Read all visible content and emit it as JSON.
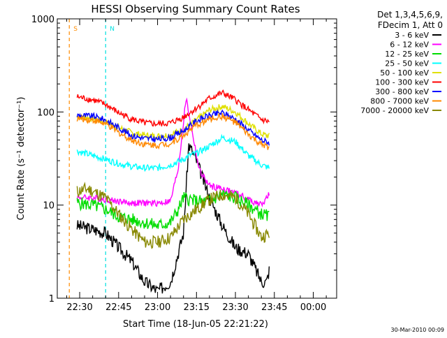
{
  "chart_data": {
    "type": "line",
    "title": "HESSI Observing Summary Count Rates",
    "xlabel": "Start Time (18-Jun-05 22:21:22)",
    "ylabel": "Count Rate (s⁻¹ detector⁻¹)",
    "y_scale": "log",
    "ylim": [
      1,
      1000
    ],
    "xlim": [
      "22:21:22",
      "00:09"
    ],
    "x_ticks": [
      "22:30",
      "22:45",
      "23:00",
      "23:15",
      "23:30",
      "23:45",
      "00:00"
    ],
    "y_ticks": [
      "1",
      "10",
      "100",
      "1000"
    ],
    "legend_title": [
      "Det 1,3,4,5,6,9,",
      "FDecim 1, Att 0"
    ],
    "legend_position": "right",
    "footer": "30-Mar-2010 00:09",
    "markers": [
      {
        "label": "S",
        "time": "22:26",
        "color": "#ff8c00"
      },
      {
        "label": "N",
        "time": "22:40",
        "color": "#00e0e0"
      }
    ],
    "series": [
      {
        "name": "3 - 6 keV",
        "color": "#000000",
        "x": [
          "22:29",
          "22:35",
          "22:40",
          "22:45",
          "22:50",
          "22:55",
          "23:00",
          "23:05",
          "23:10",
          "23:12",
          "23:15",
          "23:20",
          "23:25",
          "23:30",
          "23:35",
          "23:40",
          "23:42",
          "23:43"
        ],
        "y": [
          6,
          5.5,
          5,
          3.5,
          2.5,
          1.5,
          1.2,
          1.5,
          5,
          45,
          30,
          12,
          6,
          3.5,
          3,
          1.5,
          1.5,
          2
        ]
      },
      {
        "name": "6 - 12 keV",
        "color": "#ff00ff",
        "x": [
          "22:29",
          "22:35",
          "22:40",
          "22:45",
          "22:50",
          "22:55",
          "23:00",
          "23:05",
          "23:08",
          "23:11",
          "23:13",
          "23:16",
          "23:20",
          "23:25",
          "23:30",
          "23:35",
          "23:40",
          "23:43"
        ],
        "y": [
          12,
          12,
          11.5,
          11,
          10.5,
          10.5,
          10.5,
          11,
          25,
          140,
          70,
          24,
          16,
          15,
          13.5,
          11.5,
          10,
          13
        ]
      },
      {
        "name": "12 - 25 keV",
        "color": "#00dd00",
        "x": [
          "22:29",
          "22:35",
          "22:40",
          "22:45",
          "22:50",
          "22:55",
          "23:00",
          "23:05",
          "23:08",
          "23:10",
          "23:15",
          "23:20",
          "23:25",
          "23:30",
          "23:35",
          "23:40",
          "23:43"
        ],
        "y": [
          10.5,
          10,
          9,
          7.5,
          7,
          6.5,
          6,
          6.5,
          9,
          12,
          11,
          11,
          13,
          12,
          10,
          8,
          7.5
        ]
      },
      {
        "name": "25 - 50 keV",
        "color": "#00ffff",
        "x": [
          "22:29",
          "22:35",
          "22:40",
          "22:45",
          "22:50",
          "22:55",
          "23:00",
          "23:05",
          "23:10",
          "23:12",
          "23:15",
          "23:20",
          "23:25",
          "23:30",
          "23:35",
          "23:40",
          "23:43"
        ],
        "y": [
          38,
          34,
          31,
          28,
          26,
          25,
          25,
          27,
          31,
          34,
          36,
          43,
          53,
          48,
          34,
          27,
          25
        ]
      },
      {
        "name": "50 - 100 keV",
        "color": "#e0e000",
        "x": [
          "22:29",
          "22:35",
          "22:40",
          "22:45",
          "22:50",
          "22:55",
          "23:00",
          "23:05",
          "23:10",
          "23:15",
          "23:20",
          "23:25",
          "23:30",
          "23:35",
          "23:40",
          "23:43"
        ],
        "y": [
          90,
          85,
          78,
          68,
          60,
          56,
          55,
          57,
          65,
          82,
          105,
          115,
          100,
          75,
          58,
          55
        ]
      },
      {
        "name": "100 - 300 keV",
        "color": "#ff0000",
        "x": [
          "22:29",
          "22:35",
          "22:40",
          "22:45",
          "22:50",
          "22:55",
          "23:00",
          "23:05",
          "23:10",
          "23:15",
          "23:20",
          "23:25",
          "23:30",
          "23:35",
          "23:40",
          "23:43"
        ],
        "y": [
          145,
          135,
          120,
          98,
          84,
          76,
          74,
          76,
          88,
          110,
          140,
          160,
          135,
          105,
          83,
          78
        ]
      },
      {
        "name": "300 - 800 keV",
        "color": "#0000ff",
        "x": [
          "22:29",
          "22:35",
          "22:40",
          "22:45",
          "22:50",
          "22:55",
          "23:00",
          "23:05",
          "23:10",
          "23:15",
          "23:20",
          "23:25",
          "23:30",
          "23:35",
          "23:40",
          "23:43"
        ],
        "y": [
          92,
          90,
          82,
          68,
          56,
          52,
          51,
          53,
          63,
          80,
          92,
          98,
          84,
          64,
          50,
          47
        ]
      },
      {
        "name": "800 - 7000 keV",
        "color": "#ff8800",
        "x": [
          "22:29",
          "22:35",
          "22:40",
          "22:45",
          "22:50",
          "22:55",
          "23:00",
          "23:05",
          "23:10",
          "23:15",
          "23:20",
          "23:25",
          "23:30",
          "23:35",
          "23:40",
          "23:43"
        ],
        "y": [
          85,
          82,
          74,
          60,
          50,
          45,
          44,
          46,
          56,
          72,
          84,
          90,
          77,
          57,
          44,
          42
        ]
      },
      {
        "name": "7000 - 20000 keV",
        "color": "#888800",
        "x": [
          "22:29",
          "22:33",
          "22:40",
          "22:45",
          "22:50",
          "22:55",
          "23:00",
          "23:05",
          "23:10",
          "23:15",
          "23:20",
          "23:25",
          "23:30",
          "23:35",
          "23:40",
          "23:43"
        ],
        "y": [
          14,
          15,
          12,
          8,
          5.5,
          4,
          4,
          4.5,
          7,
          9,
          11.5,
          13,
          12,
          8,
          4.5,
          5
        ]
      }
    ]
  }
}
